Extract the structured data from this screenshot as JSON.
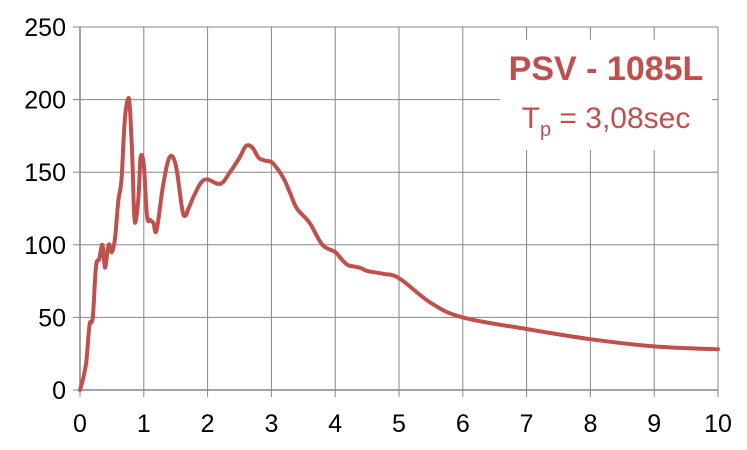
{
  "chart_data": {
    "type": "line",
    "title": "",
    "xlabel": "",
    "ylabel": "",
    "xlim": [
      0,
      10
    ],
    "ylim": [
      0,
      250
    ],
    "x_ticks": [
      0,
      1,
      2,
      3,
      4,
      5,
      6,
      7,
      8,
      9,
      10
    ],
    "y_ticks": [
      0,
      50,
      100,
      150,
      200,
      250
    ],
    "grid": true,
    "annotation": {
      "title": "PSV - 1085L",
      "period_symbol": "T",
      "period_subscript": "p",
      "period_value": " = 3,08sec"
    },
    "series": [
      {
        "color": "#C0504D",
        "x": [
          0.0,
          0.05,
          0.1,
          0.15,
          0.2,
          0.25,
          0.3,
          0.35,
          0.38,
          0.4,
          0.45,
          0.5,
          0.55,
          0.6,
          0.65,
          0.7,
          0.75,
          0.78,
          0.82,
          0.85,
          0.88,
          0.92,
          0.95,
          1.0,
          1.05,
          1.1,
          1.15,
          1.2,
          1.3,
          1.4,
          1.5,
          1.6,
          1.65,
          1.7,
          1.75,
          1.8,
          1.9,
          2.0,
          2.2,
          2.35,
          2.5,
          2.6,
          2.7,
          2.8,
          2.9,
          3.0,
          3.1,
          3.2,
          3.3,
          3.4,
          3.6,
          3.8,
          4.0,
          4.1,
          4.2,
          4.3,
          4.4,
          4.5,
          4.75,
          5.0,
          5.5,
          6.0,
          7.0,
          8.0,
          9.0,
          10.0
        ],
        "y": [
          0,
          8,
          20,
          45,
          50,
          85,
          90,
          100,
          88,
          85,
          100,
          95,
          105,
          130,
          145,
          185,
          200,
          195,
          160,
          120,
          118,
          135,
          160,
          155,
          120,
          117,
          115,
          110,
          140,
          160,
          155,
          125,
          120,
          125,
          130,
          135,
          143,
          145,
          142,
          150,
          160,
          168,
          167,
          160,
          158,
          157,
          152,
          145,
          135,
          125,
          115,
          100,
          95,
          90,
          86,
          85,
          84,
          82,
          80,
          77,
          60,
          50,
          42,
          35,
          30,
          28
        ]
      }
    ]
  }
}
